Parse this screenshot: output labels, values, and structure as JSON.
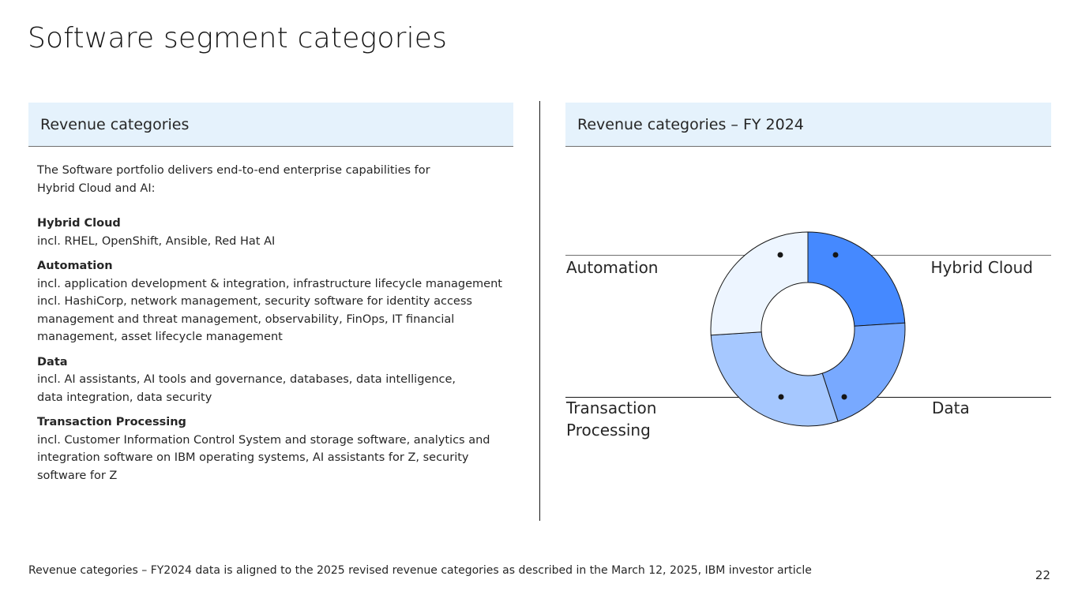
{
  "title": "Software segment categories",
  "left_panel": {
    "header": "Revenue categories",
    "intro": "The Software portfolio delivers end-to-end enterprise capabilities for Hybrid Cloud and AI:",
    "categories": [
      {
        "name": "Hybrid Cloud",
        "desc": "incl. RHEL, OpenShift, Ansible, Red Hat AI"
      },
      {
        "name": "Automation",
        "desc": "incl. application development & integration, infrastructure lifecycle management incl. HashiCorp, network management, security software for identity access management and threat management, observability, FinOps, IT financial management, asset lifecycle management"
      },
      {
        "name": "Data",
        "desc": "incl. AI assistants, AI tools and governance, databases, data intelligence, data integration, data security"
      },
      {
        "name": "Transaction Processing",
        "desc": "incl. Customer Information Control System and storage software, analytics and integration software on IBM operating systems, AI assistants for Z, security software for Z"
      }
    ]
  },
  "right_panel": {
    "header": "Revenue categories – FY 2024"
  },
  "chart_data": {
    "type": "pie",
    "donut": true,
    "categories": [
      "Hybrid Cloud",
      "Data",
      "Transaction Processing",
      "Automation"
    ],
    "values": [
      24,
      21,
      29,
      26
    ],
    "colors": [
      "#4589ff",
      "#78a9ff",
      "#a6c8ff",
      "#edf5ff"
    ],
    "legend": "leader-line labels"
  },
  "footnote": "Revenue categories – FY2024 data is aligned to the 2025 revised revenue categories as described in the March 12, 2025, IBM investor article",
  "page_number": "22"
}
